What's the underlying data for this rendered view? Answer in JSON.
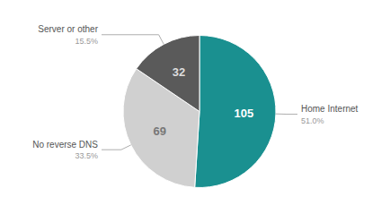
{
  "chart_data": {
    "type": "pie",
    "categories": [
      "Home Internet",
      "No reverse DNS",
      "Server or other"
    ],
    "values": [
      51.0,
      33.5,
      15.5
    ],
    "value_labels": [
      "51.0%",
      "33.5%",
      "15.5%"
    ],
    "counts": [
      105,
      69,
      32
    ],
    "colors": [
      "#1a9090",
      "#d0d0d0",
      "#5a5a5a"
    ],
    "data_labels": true
  }
}
